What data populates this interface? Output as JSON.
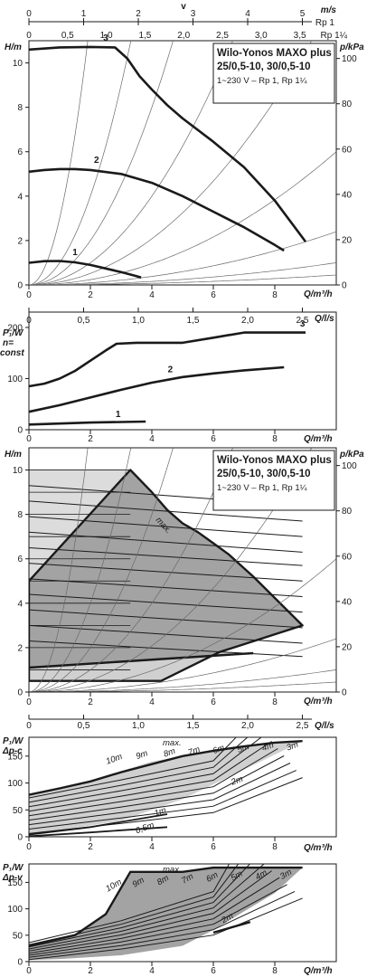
{
  "top_scales": {
    "v_label": "v",
    "ms": {
      "unit": "m/s",
      "ticks": [
        "0",
        "1",
        "2",
        "3",
        "4",
        "5"
      ]
    },
    "rp1": {
      "label": "Rp 1"
    },
    "rp114": {
      "label": "Rp 1¼",
      "ticks": [
        "0",
        "0,5",
        "1,0",
        "1,5",
        "2,0",
        "2,5",
        "3,0",
        "3,5"
      ]
    }
  },
  "info_box": {
    "title_line1": "Wilo-Yonos MAXO plus",
    "title_line2": "25/0,5-10, 30/0,5-10",
    "subtitle": "1~230 V – Rp 1, Rp 1¼"
  },
  "colors": {
    "curve": "#1a1a1a",
    "system_curve": "#6a6a6a",
    "dark_fill": "#a3a3a3",
    "light_fill": "#d0d0d0",
    "pale_fill": "#dcdcdc"
  },
  "chart_data": [
    {
      "id": "h_curves",
      "type": "line",
      "ylabel": "H/m",
      "ylabel_right": "p/kPa",
      "xlabel": "Q/m³/h",
      "xlabel_top": "Q/l/s",
      "xlim": [
        0,
        10
      ],
      "ylim": [
        0,
        11
      ],
      "x_ticks": [
        "0",
        "2",
        "4",
        "6",
        "8"
      ],
      "y_ticks": [
        "0",
        "2",
        "4",
        "6",
        "8",
        "10"
      ],
      "y2_ticks": [
        "0",
        "20",
        "40",
        "60",
        "80",
        "100"
      ],
      "series": [
        {
          "name": "1",
          "x": [
            0,
            0.5,
            1,
            1.5,
            2,
            2.5,
            3,
            3.5,
            3.65
          ],
          "y": [
            1.0,
            1.07,
            1.08,
            1.02,
            0.9,
            0.74,
            0.58,
            0.4,
            0.34
          ]
        },
        {
          "name": "2",
          "x": [
            0,
            0.5,
            1,
            1.5,
            2,
            3,
            4,
            5,
            6,
            7,
            7.5,
            8,
            8.3
          ],
          "y": [
            5.1,
            5.18,
            5.22,
            5.22,
            5.18,
            5.0,
            4.6,
            4.0,
            3.3,
            2.6,
            2.2,
            1.8,
            1.55
          ]
        },
        {
          "name": "3",
          "x": [
            0,
            1,
            2,
            2.8,
            3.2,
            3.6,
            4,
            4.5,
            5,
            6,
            7,
            8,
            9
          ],
          "y": [
            10.6,
            10.7,
            10.72,
            10.7,
            10.2,
            9.4,
            8.8,
            8.1,
            7.5,
            6.45,
            5.3,
            3.8,
            1.95
          ]
        }
      ],
      "system_curve_k": [
        30,
        10,
        5,
        2.5,
        1.3,
        0.6,
        0.24,
        0.1,
        0.045
      ],
      "annotations": [
        "1",
        "2",
        "3"
      ]
    },
    {
      "id": "power_curves",
      "type": "line",
      "ylabel": "P₁/W",
      "ylabel_line2": "n=",
      "ylabel_line3": "const",
      "xlabel": "Q/m³/h",
      "xlim": [
        0,
        10
      ],
      "ylim": [
        0,
        230
      ],
      "x_ticks": [
        "0",
        "2",
        "4",
        "6",
        "8"
      ],
      "y_ticks": [
        "0",
        "100",
        "200"
      ],
      "top_scale_ls": [
        "0",
        "0,5",
        "1,0",
        "1,5",
        "2,0",
        "2,5"
      ],
      "top_scale_label": "Q/l/s",
      "series": [
        {
          "name": "1",
          "x": [
            0,
            1,
            2,
            3,
            3.8
          ],
          "y": [
            10,
            12,
            14,
            15,
            16
          ]
        },
        {
          "name": "2",
          "x": [
            0,
            1,
            2,
            3,
            4,
            5,
            6,
            7,
            8.3
          ],
          "y": [
            35,
            48,
            63,
            78,
            92,
            103,
            110,
            116,
            122
          ]
        },
        {
          "name": "3",
          "x": [
            0,
            0.5,
            1,
            1.5,
            2,
            2.5,
            2.85,
            3.5,
            5,
            6,
            7,
            8,
            9
          ],
          "y": [
            85,
            90,
            100,
            115,
            135,
            155,
            168,
            170,
            170,
            180,
            190,
            190,
            190
          ]
        }
      ],
      "annotations": [
        "1",
        "2",
        "3"
      ]
    },
    {
      "id": "operating_field",
      "type": "area",
      "ylabel": "H/m",
      "ylabel_right": "p/kPa",
      "xlabel": "Q/m³/h",
      "xlabel_top": "Q/l/s",
      "xlim": [
        0,
        10
      ],
      "ylim": [
        0,
        11
      ],
      "x_ticks": [
        "0",
        "2",
        "4",
        "6",
        "8"
      ],
      "y_ticks": [
        "0",
        "2",
        "4",
        "6",
        "8",
        "10"
      ],
      "y2_ticks": [
        "0",
        "20",
        "40",
        "60",
        "80",
        "100"
      ],
      "top_scale_ls": [
        "0",
        "0,5",
        "1,0",
        "1,5",
        "2,0",
        "2,5"
      ],
      "max_label": "max.",
      "pale_region": {
        "x": [
          0,
          3.3,
          3.3,
          0
        ],
        "y": [
          10,
          10,
          0.5,
          0.5
        ]
      },
      "dark_region": {
        "x": [
          0,
          3.3,
          4,
          4.5,
          5,
          5.5,
          6,
          6.5,
          7.3,
          8.9,
          6.2,
          4.3,
          0
        ],
        "y": [
          5,
          10,
          9,
          8.2,
          7.6,
          7.2,
          6.7,
          6.2,
          5.2,
          3,
          1.8,
          0.5,
          0.5
        ]
      },
      "light_region": {
        "x": [
          0,
          7.3,
          6.2,
          4.3,
          0
        ],
        "y": [
          1.1,
          1.7,
          1.8,
          0.5,
          0.5
        ]
      },
      "min_line": {
        "x": [
          0,
          7.3
        ],
        "y": [
          1.1,
          1.75
        ]
      },
      "speed_lines": {
        "left": [
          2.3,
          3.0,
          3.7,
          4.4,
          5.1,
          5.8,
          6.5,
          7.2,
          7.9,
          8.6,
          9.3
        ],
        "right": [
          1.6,
          2.2,
          2.9,
          3.6,
          4.3,
          5.0,
          5.7,
          6.3,
          7.0,
          7.7,
          8.4
        ]
      }
    },
    {
      "id": "power_dp_c",
      "type": "area",
      "ylabel": "P₁/W",
      "ylabel_line2": "Δp-c",
      "xlabel": "Q/m³/h",
      "xlim": [
        0,
        10
      ],
      "ylim": [
        0,
        185
      ],
      "x_ticks": [
        "0",
        "2",
        "4",
        "6",
        "8"
      ],
      "y_ticks": [
        "0",
        "50",
        "100",
        "150"
      ],
      "top_scale_ls": [
        "0",
        "0,5",
        "1,0",
        "1,5",
        "2,0",
        "2,5"
      ],
      "max_label": "max.",
      "labels": [
        "10m",
        "9m",
        "8m",
        "7m",
        "6m",
        "5m",
        "4m",
        "3m",
        "2m",
        "1m",
        "0,5m"
      ],
      "light_region": {
        "x": [
          0,
          2,
          4,
          6,
          7.5,
          8.9,
          7,
          5,
          3,
          0
        ],
        "y": [
          80,
          105,
          140,
          160,
          172,
          178,
          125,
          70,
          30,
          3
        ]
      },
      "max_line": {
        "x": [
          0,
          1,
          2,
          3,
          4,
          5,
          6,
          7,
          8,
          8.9
        ],
        "y": [
          78,
          90,
          103,
          120,
          135,
          150,
          160,
          168,
          175,
          178
        ]
      },
      "lines_1m": {
        "x": [
          0,
          2,
          4.5
        ],
        "y": [
          4,
          18,
          42
        ]
      },
      "lines_05m": {
        "x": [
          0,
          2,
          4.5
        ],
        "y": [
          1,
          8,
          18
        ]
      }
    },
    {
      "id": "power_dp_v",
      "type": "area",
      "ylabel": "P₁/W",
      "ylabel_line2": "Δp-v",
      "xlabel": "Q/m³/h",
      "xlim": [
        0,
        10
      ],
      "ylim": [
        0,
        185
      ],
      "x_ticks": [
        "0",
        "2",
        "4",
        "6",
        "8"
      ],
      "y_ticks": [
        "0",
        "50",
        "100",
        "150"
      ],
      "max_label": "max.",
      "labels": [
        "10m",
        "9m",
        "8m",
        "7m",
        "6m",
        "5m",
        "4m",
        "3m",
        "2m"
      ],
      "region": {
        "x": [
          0,
          1.5,
          2.5,
          3.3,
          5,
          6,
          7,
          8.9,
          8,
          7,
          6,
          5,
          3,
          1,
          0
        ],
        "y": [
          30,
          50,
          90,
          170,
          170,
          178,
          178,
          178,
          130,
          95,
          60,
          30,
          12,
          5,
          3
        ]
      }
    }
  ]
}
